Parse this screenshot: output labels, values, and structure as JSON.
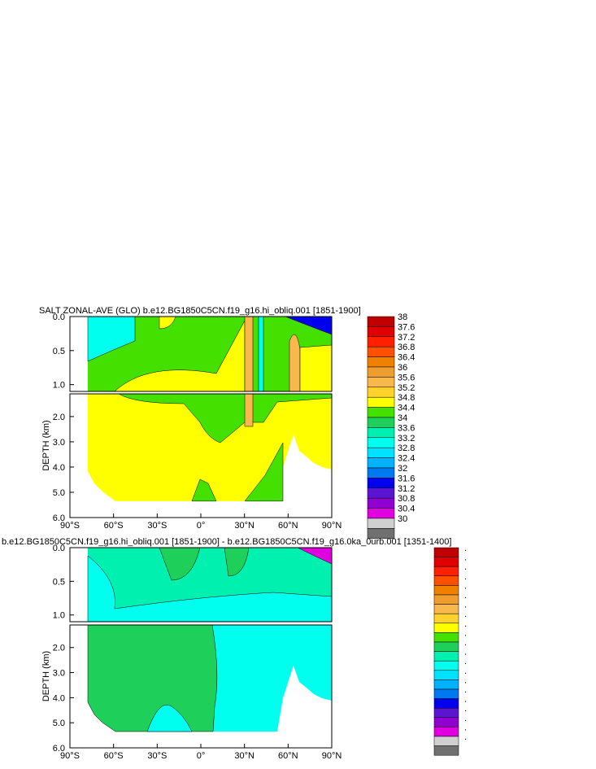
{
  "chart_data": [
    {
      "type": "heatmap",
      "title": "SALT ZONAL-AVE (GLO) b.e12.BG1850C5CN.f19_g16.hi_obliq.001 [1851-1900]",
      "ylabel": "DEPTH (km)",
      "x_ticks": [
        "90°S",
        "60°S",
        "30°S",
        "0°",
        "30°N",
        "60°N",
        "90°N"
      ],
      "x_range": [
        -90,
        90
      ],
      "y_ticks_upper": [
        "0.0",
        "0.5",
        "1.0"
      ],
      "y_ticks_lower": [
        "2.0",
        "3.0",
        "4.0",
        "5.0",
        "6.0"
      ],
      "y_range_upper_km": [
        0,
        1.1
      ],
      "y_range_lower_km": [
        1.1,
        6.0
      ],
      "colorbar_labels": [
        "38",
        "37.6",
        "37.2",
        "36.8",
        "36.4",
        "36",
        "35.6",
        "35.2",
        "34.8",
        "34.4",
        "34",
        "33.6",
        "33.2",
        "32.8",
        "32.4",
        "32",
        "31.6",
        "31.2",
        "30.8",
        "30.4",
        "30"
      ],
      "colorbar_colors": [
        "#c00000",
        "#e00000",
        "#ff2000",
        "#ff5000",
        "#f08000",
        "#f09d30",
        "#f9b84c",
        "#ffd22c",
        "#ffff00",
        "#44e000",
        "#1ed05a",
        "#00f0b0",
        "#00ffee",
        "#00e2ff",
        "#00b2ff",
        "#0078f0",
        "#0000ee",
        "#5a14d2",
        "#9000d0",
        "#e000e0",
        "#d0d0d0",
        "#707070"
      ]
    },
    {
      "type": "heatmap",
      "title": "b.e12.BG1850C5CN.f19_g16.hi_obliq.001 [1851-1900] - b.e12.BG1850C5CN.f19_g16.0ka_0urb.001 [1351-1400]",
      "ylabel": "DEPTH (km)",
      "x_ticks": [
        "90°S",
        "60°S",
        "30°S",
        "0°",
        "30°N",
        "60°N",
        "90°N"
      ],
      "x_range": [
        -90,
        90
      ],
      "y_ticks_upper": [
        "0.0",
        "0.5",
        "1.0"
      ],
      "y_ticks_lower": [
        "2.0",
        "3.0",
        "4.0",
        "5.0",
        "6.0"
      ],
      "y_range_upper_km": [
        0,
        1.1
      ],
      "y_range_lower_km": [
        1.1,
        6.0
      ],
      "colorbar_labels": [
        ".",
        ".",
        ".",
        ".",
        ".",
        ".",
        ".",
        ".",
        ".",
        ".",
        ".",
        ".",
        ".",
        ".",
        ".",
        ".",
        ".",
        ".",
        ".",
        ".",
        "."
      ],
      "colorbar_colors": [
        "#c00000",
        "#e00000",
        "#ff2000",
        "#ff5000",
        "#f08000",
        "#f09d30",
        "#f9b84c",
        "#ffd22c",
        "#ffff00",
        "#44e000",
        "#1ed05a",
        "#00f0b0",
        "#00ffee",
        "#00e2ff",
        "#00b2ff",
        "#0078f0",
        "#0000ee",
        "#5a14d2",
        "#9000d0",
        "#e000e0",
        "#d0d0d0",
        "#707070"
      ]
    }
  ]
}
